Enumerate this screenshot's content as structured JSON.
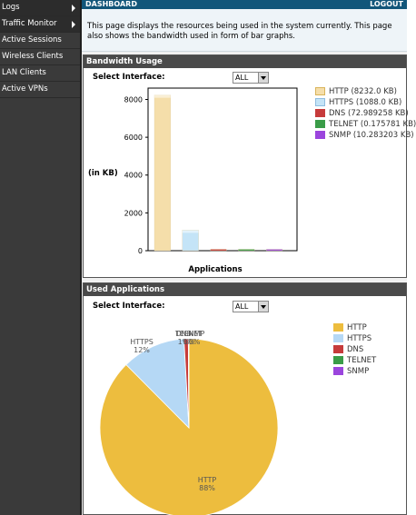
{
  "sidebar": {
    "items": [
      {
        "label": "Logs",
        "arrow": true
      },
      {
        "label": "Traffic Monitor",
        "arrow": true
      },
      {
        "label": "Active Sessions",
        "arrow": false
      },
      {
        "label": "Wireless Clients",
        "arrow": false
      },
      {
        "label": "LAN Clients",
        "arrow": false
      },
      {
        "label": "Active VPNs",
        "arrow": false
      }
    ]
  },
  "header": {
    "title": "DASHBOARD",
    "logout_label": "LOGOUT",
    "description": "This page displays the resources being used in the system currently. This page also shows the bandwidth used in form of bar graphs."
  },
  "bandwidth_panel": {
    "title": "Bandwidth Usage",
    "select_label": "Select Interface:",
    "select_value": "ALL",
    "legend": [
      {
        "label": "HTTP (8232.0 KB)",
        "color": "#f5deaa"
      },
      {
        "label": "HTTPS (1088.0 KB)",
        "color": "#c4e4f7"
      },
      {
        "label": "DNS (72.989258 KB)",
        "color": "#c63b3b"
      },
      {
        "label": "TELNET (0.175781 KB)",
        "color": "#3a9c48"
      },
      {
        "label": "SNMP (10.283203 KB)",
        "color": "#9b45dd"
      }
    ]
  },
  "applications_panel": {
    "title": "Used Applications",
    "select_label": "Select Interface:",
    "select_value": "ALL",
    "legend": [
      {
        "label": "HTTP",
        "color": "#edbd3e"
      },
      {
        "label": "HTTPS",
        "color": "#b5d8f5"
      },
      {
        "label": "DNS",
        "color": "#c63b3b"
      },
      {
        "label": "TELNET",
        "color": "#3a9c48"
      },
      {
        "label": "SNMP",
        "color": "#9b45dd"
      }
    ]
  },
  "chart_data": [
    {
      "type": "bar",
      "categories": [
        "HTTP",
        "HTTPS",
        "DNS",
        "TELNET",
        "SNMP"
      ],
      "values": [
        8232.0,
        1088.0,
        72.989258,
        0.175781,
        10.283203
      ],
      "colors": [
        "#f5deaa",
        "#c4e4f7",
        "#c63b3b",
        "#3a9c48",
        "#9b45dd"
      ],
      "ylabel": "(in KB)",
      "xlabel": "Applications",
      "yticks": [
        0,
        2000,
        4000,
        6000,
        8000
      ],
      "ylim": [
        0,
        8600
      ],
      "grid": false,
      "legend_placement": "right"
    },
    {
      "type": "pie",
      "categories": [
        "HTTP",
        "HTTPS",
        "DNS",
        "TELNET",
        "SNMP"
      ],
      "values": [
        8232.0,
        1088.0,
        72.989258,
        0.175781,
        10.283203
      ],
      "colors": [
        "#edbd3e",
        "#b5d8f5",
        "#c63b3b",
        "#3a9c48",
        "#9b45dd"
      ],
      "labels": [
        {
          "name": "HTTP",
          "pct": "88%"
        },
        {
          "name": "HTTPS",
          "pct": "12%"
        },
        {
          "name": "DNS",
          "pct": "1%"
        },
        {
          "name": "TELNET",
          "pct": "0%"
        },
        {
          "name": "SNMP",
          "pct": "0%"
        }
      ],
      "legend_placement": "right"
    }
  ]
}
